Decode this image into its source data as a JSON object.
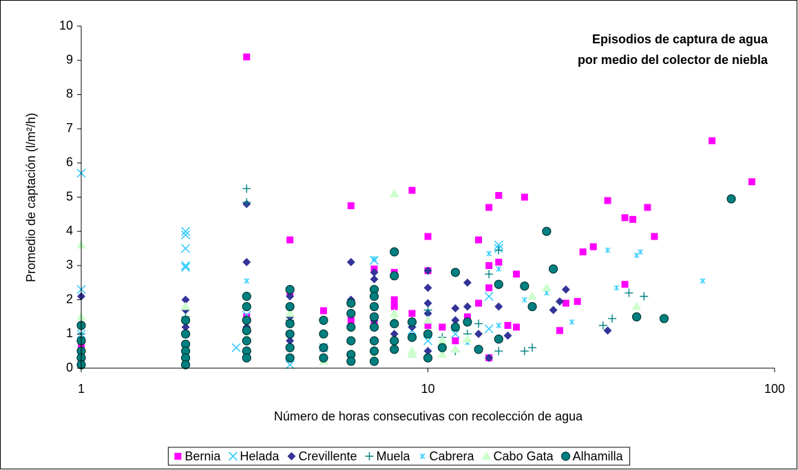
{
  "chart_data": {
    "type": "scatter",
    "title": [
      "Episodios de captura de agua",
      "por medio del colector de  niebla"
    ],
    "xlabel": "Número de horas consecutivas con recolección de agua",
    "ylabel": "Promedio de captación (l/m²/h)",
    "xscale": "log",
    "xlim": [
      1,
      100
    ],
    "xticks": [
      1,
      10,
      100
    ],
    "ylim": [
      0,
      10
    ],
    "yticks": [
      0,
      1,
      2,
      3,
      4,
      5,
      6,
      7,
      8,
      9,
      10
    ],
    "grid": false,
    "legend": "bottom",
    "series": [
      {
        "name": "Bernia",
        "color": "#ff00ff",
        "marker": "square",
        "x": [
          3,
          4,
          5,
          6,
          9,
          10,
          10,
          8,
          8,
          8,
          7,
          7,
          14,
          15,
          15,
          16,
          16,
          19,
          18,
          15,
          17,
          18,
          24,
          25,
          27,
          28,
          30,
          33,
          37,
          39,
          37,
          43,
          45,
          66,
          86,
          9,
          12,
          13,
          14,
          15,
          11,
          3,
          4,
          2,
          1,
          6,
          7,
          10
        ],
        "values": [
          9.1,
          3.75,
          1.68,
          4.75,
          5.2,
          3.85,
          2.85,
          2.8,
          2.0,
          1.8,
          2.9,
          1.8,
          3.75,
          4.7,
          3.0,
          5.05,
          3.1,
          5.0,
          2.75,
          2.35,
          1.25,
          1.2,
          1.1,
          1.9,
          1.95,
          3.4,
          3.55,
          4.9,
          4.4,
          4.35,
          2.45,
          4.7,
          3.85,
          6.65,
          5.45,
          1.6,
          0.8,
          1.5,
          1.9,
          0.3,
          1.2,
          1.5,
          2.2,
          1.0,
          0.6,
          1.4,
          1.3,
          1.25
        ]
      },
      {
        "name": "Helada",
        "color": "#33ccff",
        "marker": "x",
        "x": [
          1,
          1,
          2,
          2,
          2,
          2,
          2,
          3,
          2.8,
          4,
          5,
          7,
          9,
          10,
          15,
          15,
          16,
          16,
          1,
          3,
          12
        ],
        "values": [
          5.7,
          2.3,
          4.0,
          3.9,
          3.5,
          3.0,
          2.95,
          1.55,
          0.6,
          0.1,
          0.6,
          3.15,
          1.1,
          0.8,
          2.1,
          1.15,
          3.6,
          3.5,
          1.0,
          0.4,
          1.0
        ]
      },
      {
        "name": "Crevillente",
        "color": "#333399",
        "marker": "diamond",
        "x": [
          1,
          2,
          2,
          2,
          3,
          3,
          3,
          4,
          4,
          4,
          6,
          6,
          7,
          7,
          7,
          9,
          10,
          10,
          10,
          10,
          10,
          12,
          12,
          13,
          13,
          14,
          15,
          16,
          17,
          23,
          24,
          25,
          33,
          5,
          8,
          1
        ],
        "values": [
          2.1,
          2.0,
          1.7,
          1.2,
          4.8,
          3.1,
          1.2,
          2.1,
          1.5,
          0.8,
          3.1,
          2.0,
          2.8,
          2.6,
          1.4,
          1.2,
          2.85,
          2.35,
          1.9,
          1.6,
          0.5,
          1.75,
          1.4,
          2.5,
          1.8,
          1.0,
          0.3,
          1.8,
          0.95,
          1.7,
          1.95,
          2.3,
          1.1,
          1.0,
          1.0,
          0.3
        ]
      },
      {
        "name": "Muela",
        "color": "#008080",
        "marker": "plus",
        "x": [
          3,
          3,
          3,
          1,
          2,
          4,
          9,
          10,
          11,
          12,
          14,
          15,
          16,
          16,
          19,
          20,
          32,
          34,
          38,
          42,
          7,
          13
        ],
        "values": [
          5.25,
          4.85,
          2.1,
          1.0,
          1.5,
          1.4,
          1.3,
          1.7,
          0.9,
          0.5,
          1.3,
          2.75,
          3.45,
          0.5,
          0.5,
          0.6,
          1.25,
          1.45,
          2.2,
          2.1,
          0.5,
          1.0
        ]
      },
      {
        "name": "Cabrera",
        "color": "#33ccff",
        "marker": "asterisk",
        "x": [
          3,
          3,
          4,
          7,
          9,
          10,
          13,
          15,
          16,
          16,
          19,
          22,
          26,
          33,
          35,
          40,
          41,
          62,
          1,
          2,
          5,
          8
        ],
        "values": [
          2.55,
          2.1,
          1.35,
          3.2,
          0.9,
          1.0,
          0.75,
          3.35,
          2.9,
          1.25,
          2.0,
          2.2,
          1.35,
          3.45,
          2.35,
          3.3,
          3.4,
          2.55,
          1.2,
          0.5,
          0.3,
          0.7
        ]
      },
      {
        "name": "Cabo Gata",
        "color": "#ccffcc",
        "marker": "triangle",
        "x": [
          1,
          1,
          2,
          4,
          8,
          8,
          8,
          9,
          9,
          9,
          10,
          10,
          11,
          11,
          12,
          13,
          20,
          22,
          40,
          5,
          6,
          7,
          2,
          3
        ],
        "values": [
          3.6,
          1.5,
          1.8,
          1.6,
          5.1,
          1.6,
          1.4,
          0.9,
          0.5,
          0.4,
          1.4,
          0.3,
          0.8,
          0.4,
          0.55,
          0.85,
          2.1,
          2.35,
          1.8,
          0.2,
          0.8,
          0.3,
          0.3,
          0.9
        ]
      },
      {
        "name": "Alhamilla",
        "color": "#008080",
        "marker": "circle",
        "x": [
          1,
          1,
          1,
          1,
          1,
          2,
          2,
          2,
          2,
          2,
          2,
          3,
          3,
          3,
          3,
          3,
          3,
          3,
          4,
          4,
          4,
          4,
          4,
          4,
          5,
          5,
          5,
          5,
          6,
          6,
          6,
          6,
          6,
          6,
          7,
          7,
          7,
          7,
          7,
          7,
          7,
          7,
          8,
          8,
          8,
          8,
          8,
          9,
          10,
          11,
          12,
          12,
          13,
          14,
          16,
          16,
          19,
          20,
          22,
          23,
          40,
          48,
          75,
          9,
          10
        ],
        "values": [
          1.25,
          0.8,
          0.5,
          0.3,
          0.1,
          1.4,
          1.0,
          0.7,
          0.5,
          0.3,
          0.1,
          2.1,
          1.8,
          1.4,
          1.1,
          0.8,
          0.5,
          0.3,
          2.3,
          1.8,
          1.3,
          1.0,
          0.6,
          0.3,
          1.4,
          1.0,
          0.6,
          0.3,
          1.9,
          1.6,
          1.2,
          0.8,
          0.4,
          0.2,
          2.3,
          2.1,
          1.8,
          1.5,
          1.2,
          0.8,
          0.5,
          0.2,
          3.4,
          2.7,
          1.3,
          0.8,
          0.55,
          1.35,
          0.3,
          0.6,
          2.8,
          1.2,
          1.35,
          0.55,
          2.45,
          0.85,
          2.4,
          1.8,
          4.0,
          2.9,
          1.5,
          1.45,
          4.95,
          0.9,
          1.0
        ]
      }
    ]
  }
}
